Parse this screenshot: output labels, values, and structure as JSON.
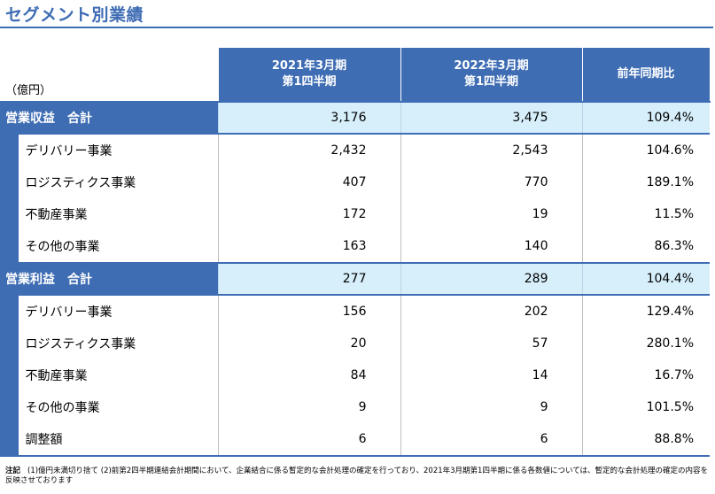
{
  "title": "セグメント別業績",
  "unit": "（億円）",
  "columns": {
    "col1_line1": "2021年3月期",
    "col1_line2": "第1四半期",
    "col2_line1": "2022年3月期",
    "col2_line2": "第1四半期",
    "col3": "前年同期比"
  },
  "revenue": {
    "total": {
      "label": "営業収益　合計",
      "v2021": "3,176",
      "v2022": "3,475",
      "ratio": "109.4%"
    },
    "rows": [
      {
        "label": "デリバリー事業",
        "v2021": "2,432",
        "v2022": "2,543",
        "ratio": "104.6%"
      },
      {
        "label": "ロジスティクス事業",
        "v2021": "407",
        "v2022": "770",
        "ratio": "189.1%"
      },
      {
        "label": "不動産事業",
        "v2021": "172",
        "v2022": "19",
        "ratio": "11.5%"
      },
      {
        "label": "その他の事業",
        "v2021": "163",
        "v2022": "140",
        "ratio": "86.3%"
      }
    ]
  },
  "profit": {
    "total": {
      "label": "営業利益　合計",
      "v2021": "277",
      "v2022": "289",
      "ratio": "104.4%"
    },
    "rows": [
      {
        "label": "デリバリー事業",
        "v2021": "156",
        "v2022": "202",
        "ratio": "129.4%"
      },
      {
        "label": "ロジスティクス事業",
        "v2021": "20",
        "v2022": "57",
        "ratio": "280.1%"
      },
      {
        "label": "不動産事業",
        "v2021": "84",
        "v2022": "14",
        "ratio": "16.7%"
      },
      {
        "label": "その他の事業",
        "v2021": "9",
        "v2022": "9",
        "ratio": "101.5%"
      },
      {
        "label": "調整額",
        "v2021": "6",
        "v2022": "6",
        "ratio": "88.8%"
      }
    ]
  },
  "note": {
    "label": "注記",
    "text": "(1)億円未満切り捨て (2)前第2四半期連結会計期間において、企業結合に係る暫定的な会計処理の確定を行っており、2021年3月期第1四半期に係る各数値については、暫定的な会計処理の確定の内容を反映させております"
  }
}
